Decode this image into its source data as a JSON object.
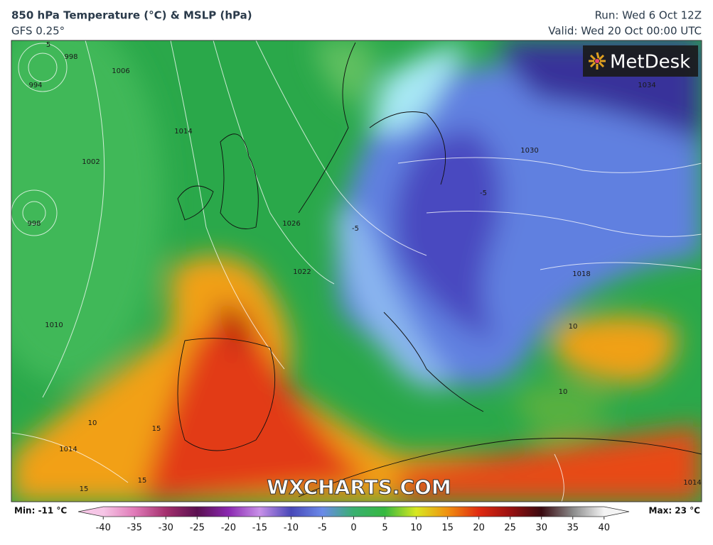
{
  "header": {
    "title": "850 hPa Temperature (°C) & MSLP (hPa)",
    "subtitle": "GFS 0.25°",
    "run": "Run: Wed 6 Oct 12Z",
    "valid": "Valid: Wed 20 Oct 00:00 UTC"
  },
  "logo": "MetDesk",
  "watermark": "WXCHARTS.COM",
  "map_labels": [
    "5",
    "998",
    "994",
    "1006",
    "1014",
    "1002",
    "998",
    "1010",
    "1022",
    "1026",
    "1030",
    "1034",
    "1018",
    "10",
    "15",
    "15",
    "10",
    "10",
    "15",
    "1014",
    "1014",
    "-5",
    "-5"
  ],
  "colorbar": {
    "min_label": "Min: -11 °C",
    "max_label": "Max: 23 °C",
    "lim": [
      -44,
      44
    ],
    "ticks": [
      -40,
      -35,
      -30,
      -25,
      -20,
      -15,
      -10,
      -5,
      0,
      5,
      10,
      15,
      20,
      25,
      30,
      35,
      40
    ],
    "colors": [
      "#f6c6e6",
      "#e07ab8",
      "#a4306e",
      "#5a1050",
      "#8a28b0",
      "#c890e8",
      "#4848b8",
      "#6a8ae8",
      "#3ab070",
      "#36b840",
      "#d8e820",
      "#f09010",
      "#e02a10",
      "#9a1010",
      "#3a0a10",
      "#8a8a8a",
      "#f4f4f4"
    ]
  }
}
